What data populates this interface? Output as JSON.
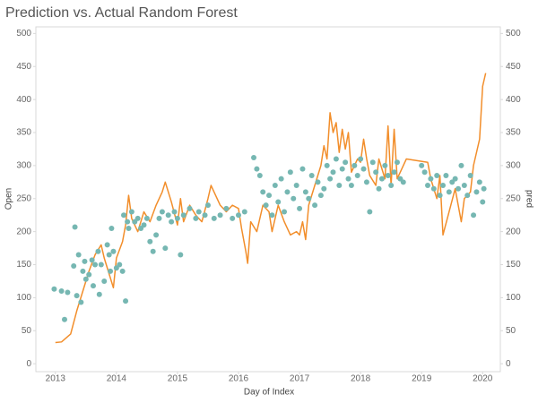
{
  "chart_data": {
    "type": "combo",
    "title": "Prediction vs. Actual Random Forest",
    "x_label": "Day of Index",
    "y_label": "Open",
    "y2_label": "pred",
    "xlim": [
      2012.68,
      2020.29
    ],
    "xticks": [
      2013,
      2014,
      2015,
      2016,
      2017,
      2018,
      2019,
      2020
    ],
    "ylim": [
      -12,
      510
    ],
    "yticks": [
      0,
      50,
      100,
      150,
      200,
      250,
      300,
      350,
      400,
      450,
      500
    ],
    "y2lim": [
      -12,
      510
    ],
    "y2ticks": [
      0,
      50,
      100,
      150,
      200,
      250,
      300,
      350,
      400,
      450,
      500
    ],
    "grid": false,
    "series": [
      {
        "name": "Open",
        "type": "line",
        "color": "#f28e2b",
        "axis": "y",
        "x": [
          2013.0,
          2013.1,
          2013.25,
          2013.35,
          2013.45,
          2013.55,
          2013.65,
          2013.75,
          2013.8,
          2013.9,
          2013.95,
          2014.0,
          2014.1,
          2014.15,
          2014.2,
          2014.25,
          2014.35,
          2014.45,
          2014.55,
          2014.65,
          2014.75,
          2014.8,
          2014.9,
          2015.0,
          2015.05,
          2015.1,
          2015.2,
          2015.3,
          2015.4,
          2015.5,
          2015.55,
          2015.6,
          2015.7,
          2015.8,
          2015.9,
          2016.0,
          2016.05,
          2016.12,
          2016.15,
          2016.2,
          2016.3,
          2016.4,
          2016.5,
          2016.55,
          2016.65,
          2016.75,
          2016.85,
          2016.95,
          2017.0,
          2017.05,
          2017.1,
          2017.15,
          2017.25,
          2017.35,
          2017.4,
          2017.45,
          2017.5,
          2017.55,
          2017.6,
          2017.65,
          2017.7,
          2017.75,
          2017.8,
          2017.85,
          2017.95,
          2018.0,
          2018.05,
          2018.1,
          2018.15,
          2018.25,
          2018.3,
          2018.4,
          2018.45,
          2018.5,
          2018.55,
          2018.6,
          2018.7,
          2018.75,
          2019.1,
          2019.15,
          2019.25,
          2019.3,
          2019.35,
          2019.45,
          2019.55,
          2019.65,
          2019.7,
          2019.8,
          2019.85,
          2019.95,
          2020.0,
          2020.05
        ],
        "values": [
          32,
          33,
          45,
          80,
          110,
          140,
          165,
          180,
          160,
          130,
          115,
          160,
          185,
          210,
          255,
          220,
          200,
          230,
          215,
          240,
          260,
          275,
          245,
          210,
          250,
          215,
          240,
          225,
          215,
          250,
          270,
          260,
          240,
          230,
          240,
          235,
          205,
          170,
          152,
          215,
          200,
          240,
          230,
          200,
          240,
          215,
          195,
          200,
          195,
          215,
          188,
          240,
          270,
          300,
          330,
          310,
          380,
          350,
          365,
          320,
          355,
          325,
          350,
          290,
          310,
          305,
          340,
          310,
          285,
          270,
          310,
          280,
          360,
          270,
          355,
          280,
          300,
          310,
          305,
          280,
          250,
          285,
          195,
          230,
          265,
          215,
          250,
          260,
          300,
          340,
          420,
          440
        ]
      },
      {
        "name": "pred",
        "type": "scatter",
        "color": "#76b7b2",
        "axis": "y2",
        "x": [
          2012.98,
          2013.1,
          2013.15,
          2013.2,
          2013.3,
          2013.32,
          2013.35,
          2013.38,
          2013.42,
          2013.45,
          2013.48,
          2013.5,
          2013.55,
          2013.6,
          2013.62,
          2013.65,
          2013.7,
          2013.72,
          2013.75,
          2013.8,
          2013.85,
          2013.88,
          2013.9,
          2013.92,
          2013.95,
          2014.0,
          2014.05,
          2014.1,
          2014.12,
          2014.15,
          2014.18,
          2014.2,
          2014.25,
          2014.3,
          2014.35,
          2014.4,
          2014.45,
          2014.5,
          2014.55,
          2014.6,
          2014.65,
          2014.7,
          2014.75,
          2014.8,
          2014.85,
          2014.9,
          2014.95,
          2015.0,
          2015.05,
          2015.1,
          2015.2,
          2015.3,
          2015.35,
          2015.45,
          2015.5,
          2015.6,
          2015.7,
          2015.8,
          2015.9,
          2016.0,
          2016.1,
          2016.25,
          2016.3,
          2016.35,
          2016.4,
          2016.45,
          2016.5,
          2016.55,
          2016.6,
          2016.65,
          2016.7,
          2016.75,
          2016.8,
          2016.85,
          2016.9,
          2016.95,
          2017.0,
          2017.05,
          2017.1,
          2017.15,
          2017.2,
          2017.25,
          2017.3,
          2017.35,
          2017.4,
          2017.45,
          2017.5,
          2017.55,
          2017.6,
          2017.65,
          2017.7,
          2017.75,
          2017.8,
          2017.85,
          2017.9,
          2017.95,
          2018.0,
          2018.05,
          2018.1,
          2018.15,
          2018.2,
          2018.25,
          2018.3,
          2018.35,
          2018.4,
          2018.45,
          2018.5,
          2018.55,
          2018.6,
          2018.65,
          2018.7,
          2019.0,
          2019.05,
          2019.1,
          2019.15,
          2019.2,
          2019.25,
          2019.3,
          2019.35,
          2019.4,
          2019.45,
          2019.5,
          2019.55,
          2019.6,
          2019.65,
          2019.7,
          2019.75,
          2019.8,
          2019.85,
          2019.9,
          2019.95,
          2020.0,
          2020.02
        ],
        "values": [
          113,
          110,
          67,
          108,
          148,
          207,
          103,
          165,
          93,
          140,
          155,
          128,
          135,
          157,
          118,
          150,
          170,
          105,
          150,
          125,
          180,
          165,
          140,
          205,
          170,
          145,
          150,
          140,
          225,
          95,
          215,
          205,
          230,
          215,
          220,
          205,
          210,
          220,
          185,
          170,
          195,
          220,
          230,
          175,
          225,
          215,
          230,
          220,
          165,
          225,
          235,
          220,
          230,
          225,
          240,
          220,
          225,
          235,
          220,
          225,
          230,
          312,
          295,
          285,
          260,
          240,
          255,
          225,
          270,
          245,
          280,
          230,
          260,
          290,
          250,
          270,
          235,
          295,
          260,
          250,
          285,
          240,
          275,
          255,
          265,
          300,
          280,
          290,
          310,
          270,
          295,
          305,
          280,
          270,
          300,
          285,
          310,
          295,
          275,
          230,
          305,
          290,
          265,
          280,
          300,
          285,
          270,
          290,
          305,
          280,
          275,
          300,
          290,
          270,
          280,
          265,
          285,
          255,
          270,
          285,
          260,
          275,
          280,
          265,
          300,
          270,
          255,
          285,
          225,
          260,
          275,
          245,
          265
        ]
      }
    ]
  }
}
